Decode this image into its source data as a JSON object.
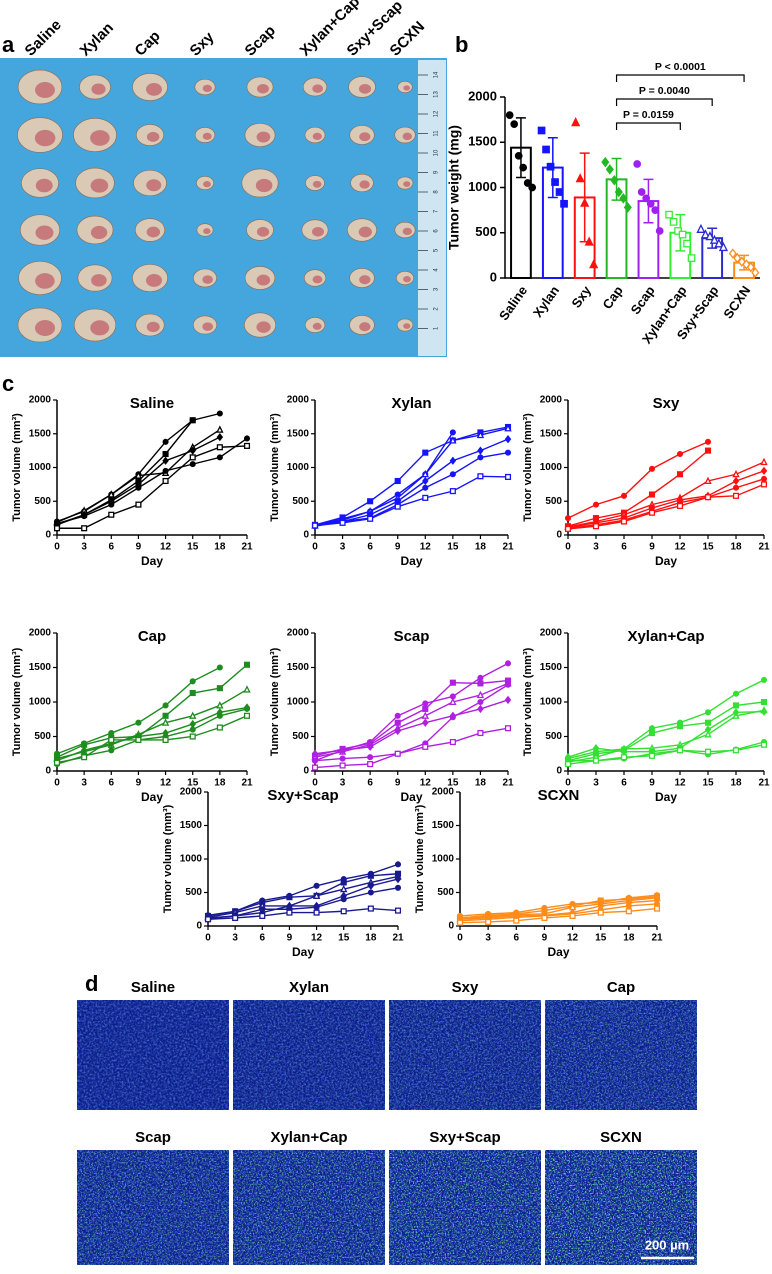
{
  "panel_labels": [
    "a",
    "b",
    "c",
    "d"
  ],
  "photo": {
    "group_labels": [
      "Saline",
      "Xylan",
      "Cap",
      "Sxy",
      "Scap",
      "Xylan+Cap",
      "Sxy+Scap",
      "SCXN"
    ],
    "ruler_labels": [
      "1",
      "2",
      "3",
      "4",
      "5",
      "6",
      "7",
      "8",
      "9",
      "10",
      "11",
      "12",
      "13",
      "14"
    ]
  },
  "chart_data": [
    {
      "type": "bar",
      "ylabel": "Tumor weight (mg)",
      "categories": [
        "Saline",
        "Xylan",
        "Sxy",
        "Cap",
        "Scap",
        "Xylan+Cap",
        "Sxy+Scap",
        "SCXN"
      ],
      "colors": [
        "#000000",
        "#1414ff",
        "#ff1010",
        "#22b822",
        "#a020f0",
        "#33ee33",
        "#2a2ad0",
        "#ff8c1a"
      ],
      "values": [
        1440,
        1220,
        890,
        1090,
        850,
        500,
        440,
        170
      ],
      "errors": [
        330,
        330,
        490,
        230,
        240,
        200,
        110,
        80
      ],
      "points": [
        [
          1800,
          1700,
          1350,
          1220,
          1050,
          1000
        ],
        [
          1630,
          1420,
          1230,
          1060,
          950,
          820
        ],
        [
          1720,
          1100,
          830,
          400,
          150
        ],
        [
          1280,
          1200,
          1080,
          950,
          880,
          780
        ],
        [
          1260,
          950,
          880,
          820,
          750,
          520
        ],
        [
          700,
          620,
          520,
          480,
          380,
          220
        ],
        [
          540,
          480,
          460,
          420,
          380,
          340
        ],
        [
          270,
          220,
          180,
          150,
          120,
          60
        ]
      ],
      "ylim": [
        0,
        2000
      ],
      "yticks": [
        0,
        500,
        1000,
        1500,
        2000
      ],
      "annotations": [
        {
          "label": "P = 0.0159",
          "between": [
            "Cap",
            "Xylan+Cap"
          ]
        },
        {
          "label": "P = 0.0040",
          "between": [
            "Cap",
            "Sxy+Scap"
          ]
        },
        {
          "label": "P < 0.0001",
          "between": [
            "Cap",
            "SCXN"
          ]
        }
      ]
    },
    {
      "type": "line",
      "title": "Saline",
      "color": "#000000",
      "xlabel": "Day",
      "ylabel": "Tumor volume (mm³)",
      "x": [
        0,
        3,
        6,
        9,
        12,
        15,
        18,
        21
      ],
      "xlim": [
        0,
        21
      ],
      "xticks": [
        0,
        3,
        6,
        9,
        12,
        15,
        18,
        21
      ],
      "ylim": [
        0,
        2000
      ],
      "yticks": [
        0,
        500,
        1000,
        1500,
        2000
      ],
      "series": [
        {
          "values": [
            200,
            350,
            600,
            900,
            1380,
            1700,
            1800,
            null
          ]
        },
        {
          "values": [
            160,
            300,
            520,
            800,
            1200,
            1700,
            null,
            null
          ]
        },
        {
          "values": [
            190,
            360,
            600,
            880,
            920,
            1300,
            1560,
            null
          ]
        },
        {
          "values": [
            150,
            300,
            500,
            750,
            1100,
            1250,
            1450,
            null
          ]
        },
        {
          "values": [
            170,
            280,
            450,
            700,
            950,
            1050,
            1150,
            1430
          ]
        },
        {
          "values": [
            100,
            100,
            300,
            450,
            800,
            1150,
            1300,
            1320
          ]
        }
      ]
    },
    {
      "type": "line",
      "title": "Xylan",
      "color": "#1414ff",
      "xlabel": "Day",
      "ylabel": "Tumor volume (mm³)",
      "x": [
        0,
        3,
        6,
        9,
        12,
        15,
        18,
        21
      ],
      "xlim": [
        0,
        21
      ],
      "xticks": [
        0,
        3,
        6,
        9,
        12,
        15,
        18,
        21
      ],
      "ylim": [
        0,
        2000
      ],
      "yticks": [
        0,
        500,
        1000,
        1500,
        2000
      ],
      "series": [
        {
          "values": [
            150,
            220,
            350,
            600,
            900,
            1520,
            null,
            null
          ]
        },
        {
          "values": [
            150,
            260,
            500,
            800,
            1220,
            1400,
            1520,
            1600
          ]
        },
        {
          "values": [
            140,
            240,
            350,
            550,
            900,
            1400,
            1480,
            1580
          ]
        },
        {
          "values": [
            150,
            200,
            300,
            500,
            800,
            1100,
            1250,
            1420
          ]
        },
        {
          "values": [
            130,
            200,
            250,
            450,
            700,
            900,
            1150,
            1220
          ]
        },
        {
          "values": [
            140,
            180,
            240,
            420,
            550,
            650,
            870,
            860
          ]
        }
      ]
    },
    {
      "type": "line",
      "title": "Sxy",
      "color": "#ff1010",
      "xlabel": "Day",
      "ylabel": "Tumor volume (mm³)",
      "x": [
        0,
        3,
        6,
        9,
        12,
        15,
        18,
        21
      ],
      "xlim": [
        0,
        21
      ],
      "xticks": [
        0,
        3,
        6,
        9,
        12,
        15,
        18,
        21
      ],
      "ylim": [
        0,
        2000
      ],
      "yticks": [
        0,
        500,
        1000,
        1500,
        2000
      ],
      "series": [
        {
          "values": [
            250,
            450,
            580,
            980,
            1200,
            1380,
            null,
            null
          ]
        },
        {
          "values": [
            130,
            250,
            330,
            600,
            900,
            1250,
            null,
            null
          ]
        },
        {
          "values": [
            120,
            200,
            300,
            450,
            550,
            800,
            900,
            1080
          ]
        },
        {
          "values": [
            110,
            180,
            250,
            400,
            520,
            580,
            800,
            950
          ]
        },
        {
          "values": [
            100,
            150,
            220,
            350,
            480,
            560,
            700,
            830
          ]
        },
        {
          "values": [
            90,
            130,
            200,
            330,
            430,
            560,
            580,
            750
          ]
        }
      ]
    },
    {
      "type": "line",
      "title": "Cap",
      "color": "#1e8c1e",
      "xlabel": "Day",
      "ylabel": "Tumor volume (mm³)",
      "x": [
        0,
        3,
        6,
        9,
        12,
        15,
        18,
        21
      ],
      "xlim": [
        0,
        21
      ],
      "xticks": [
        0,
        3,
        6,
        9,
        12,
        15,
        18,
        21
      ],
      "ylim": [
        0,
        2000
      ],
      "yticks": [
        0,
        500,
        1000,
        1500,
        2000
      ],
      "series": [
        {
          "values": [
            250,
            400,
            550,
            700,
            950,
            1300,
            1500,
            null
          ]
        },
        {
          "values": [
            200,
            380,
            480,
            500,
            800,
            1130,
            1200,
            1540
          ]
        },
        {
          "values": [
            180,
            280,
            380,
            530,
            700,
            800,
            950,
            1180
          ]
        },
        {
          "values": [
            150,
            300,
            400,
            500,
            550,
            680,
            850,
            920
          ]
        },
        {
          "values": [
            100,
            220,
            300,
            450,
            500,
            600,
            800,
            900
          ]
        },
        {
          "values": [
            120,
            200,
            450,
            450,
            450,
            500,
            630,
            800
          ]
        }
      ]
    },
    {
      "type": "line",
      "title": "Scap",
      "color": "#b020e0",
      "xlabel": "Day",
      "ylabel": "Tumor volume (mm³)",
      "x": [
        0,
        3,
        6,
        9,
        12,
        15,
        18,
        21
      ],
      "xlim": [
        0,
        21
      ],
      "xticks": [
        0,
        3,
        6,
        9,
        12,
        15,
        18,
        21
      ],
      "ylim": [
        0,
        2000
      ],
      "yticks": [
        0,
        500,
        1000,
        1500,
        2000
      ],
      "series": [
        {
          "values": [
            150,
            300,
            420,
            800,
            980,
            1080,
            1350,
            1560
          ]
        },
        {
          "values": [
            220,
            320,
            400,
            700,
            900,
            1280,
            1270,
            1310
          ]
        },
        {
          "values": [
            200,
            280,
            380,
            620,
            800,
            1000,
            1100,
            1270
          ]
        },
        {
          "values": [
            250,
            300,
            350,
            580,
            700,
            800,
            900,
            1030
          ]
        },
        {
          "values": [
            150,
            180,
            200,
            250,
            400,
            780,
            1000,
            1250
          ]
        },
        {
          "values": [
            50,
            80,
            100,
            250,
            350,
            420,
            550,
            620
          ]
        }
      ]
    },
    {
      "type": "line",
      "title": "Xylan+Cap",
      "color": "#33e033",
      "xlabel": "Day",
      "ylabel": "Tumor volume (mm³)",
      "x": [
        0,
        3,
        6,
        9,
        12,
        15,
        18,
        21
      ],
      "xlim": [
        0,
        21
      ],
      "xticks": [
        0,
        3,
        6,
        9,
        12,
        15,
        18,
        21
      ],
      "ylim": [
        0,
        2000
      ],
      "yticks": [
        0,
        500,
        1000,
        1500,
        2000
      ],
      "series": [
        {
          "values": [
            180,
            280,
            320,
            620,
            700,
            850,
            1120,
            1320
          ]
        },
        {
          "values": [
            150,
            250,
            300,
            550,
            650,
            700,
            950,
            1000
          ]
        },
        {
          "values": [
            130,
            200,
            320,
            330,
            380,
            530,
            800,
            880
          ]
        },
        {
          "values": [
            200,
            330,
            280,
            280,
            330,
            600,
            850,
            860
          ]
        },
        {
          "values": [
            150,
            150,
            180,
            250,
            300,
            240,
            310,
            420
          ]
        },
        {
          "values": [
            100,
            150,
            200,
            220,
            300,
            280,
            300,
            380
          ]
        }
      ]
    },
    {
      "type": "line",
      "title": "Sxy+Scap",
      "color": "#1a1a90",
      "xlabel": "Day",
      "ylabel": "Tumor volume (mm³)",
      "x": [
        0,
        3,
        6,
        9,
        12,
        15,
        18,
        21
      ],
      "xlim": [
        0,
        21
      ],
      "xticks": [
        0,
        3,
        6,
        9,
        12,
        15,
        18,
        21
      ],
      "ylim": [
        0,
        2000
      ],
      "yticks": [
        0,
        500,
        1000,
        1500,
        2000
      ],
      "series": [
        {
          "values": [
            160,
            220,
            380,
            450,
            600,
            700,
            780,
            920
          ]
        },
        {
          "values": [
            150,
            220,
            350,
            430,
            450,
            650,
            750,
            780
          ]
        },
        {
          "values": [
            130,
            200,
            300,
            300,
            450,
            550,
            650,
            740
          ]
        },
        {
          "values": [
            120,
            150,
            200,
            300,
            300,
            450,
            600,
            700
          ]
        },
        {
          "values": [
            110,
            150,
            250,
            250,
            280,
            400,
            500,
            570
          ]
        },
        {
          "values": [
            100,
            120,
            150,
            200,
            200,
            220,
            260,
            230
          ]
        }
      ]
    },
    {
      "type": "line",
      "title": "SCXN",
      "color": "#ff8c1a",
      "xlabel": "Day",
      "ylabel": "Tumor volume (mm³)",
      "x": [
        0,
        3,
        6,
        9,
        12,
        15,
        18,
        21
      ],
      "xlim": [
        0,
        21
      ],
      "xticks": [
        0,
        3,
        6,
        9,
        12,
        15,
        18,
        21
      ],
      "ylim": [
        0,
        2000
      ],
      "yticks": [
        0,
        500,
        1000,
        1500,
        2000
      ],
      "series": [
        {
          "values": [
            150,
            180,
            200,
            270,
            330,
            350,
            420,
            460
          ]
        },
        {
          "values": [
            120,
            160,
            180,
            230,
            300,
            380,
            400,
            440
          ]
        },
        {
          "values": [
            100,
            140,
            170,
            180,
            280,
            330,
            380,
            420
          ]
        },
        {
          "values": [
            100,
            120,
            150,
            160,
            200,
            300,
            350,
            380
          ]
        },
        {
          "values": [
            80,
            100,
            130,
            150,
            180,
            240,
            300,
            330
          ]
        },
        {
          "values": [
            50,
            60,
            80,
            120,
            150,
            200,
            220,
            260
          ]
        }
      ]
    }
  ],
  "micrographs": {
    "labels": [
      "Saline",
      "Xylan",
      "Sxy",
      "Cap",
      "Scap",
      "Xylan+Cap",
      "Sxy+Scap",
      "SCXN"
    ],
    "scale_bar": "200 µm"
  }
}
